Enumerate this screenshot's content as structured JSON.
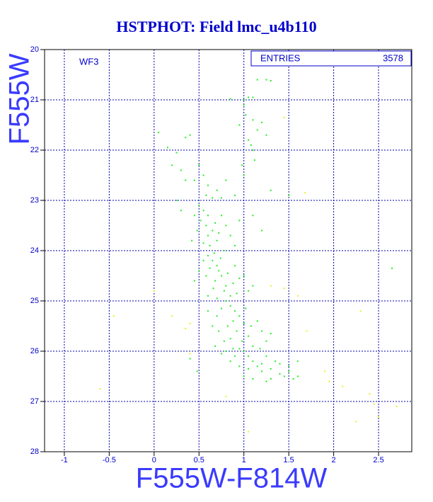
{
  "chart_data": {
    "type": "scatter",
    "title": "HSTPHOT: Field lmc_u4b110",
    "x_label": "F555W-F814W",
    "y_label": "F555W",
    "panel_label": "WF3",
    "stats_label": "ENTRIES",
    "stats_value": "3578",
    "xlim": [
      -1.22,
      2.87
    ],
    "ylim": [
      28,
      20
    ],
    "xticks": [
      -1,
      -0.5,
      0,
      0.5,
      1,
      1.5,
      2,
      2.5
    ],
    "yticks": [
      20,
      21,
      22,
      23,
      24,
      25,
      26,
      27,
      28
    ],
    "grid": true,
    "series": [
      {
        "color": "#22ee22",
        "x": [
          1.0,
          1.05,
          1.1,
          1.25,
          1.15,
          1.3,
          1.0,
          1.02,
          1.1,
          1.15,
          1.05,
          0.95,
          0.85,
          1.2,
          1.25,
          1.1,
          1.08,
          0.98,
          1.12,
          1.0,
          0.05,
          0.15,
          0.25,
          0.35,
          0.4,
          0.2,
          0.3,
          0.35,
          0.5,
          0.55,
          0.6,
          0.45,
          0.7,
          0.8,
          0.9,
          0.58,
          0.65,
          0.75,
          0.5,
          0.55,
          0.6,
          0.52,
          0.58,
          0.65,
          0.6,
          0.7,
          0.62,
          0.75,
          0.8,
          0.45,
          0.48,
          0.68,
          0.72,
          0.55,
          0.85,
          0.95,
          1.1,
          1.2,
          0.42,
          0.9,
          0.78,
          0.67,
          0.6,
          0.65,
          0.7,
          0.72,
          0.75,
          0.68,
          0.8,
          0.78,
          0.85,
          0.62,
          0.9,
          0.95,
          0.58,
          0.66,
          0.88,
          1.0,
          1.05,
          0.55,
          0.74,
          0.82,
          0.6,
          0.92,
          0.7,
          1.1,
          0.5,
          0.45,
          0.8,
          0.85,
          0.9,
          0.75,
          0.95,
          0.88,
          0.82,
          1.0,
          0.92,
          1.05,
          0.98,
          1.1,
          0.7,
          0.72,
          0.78,
          1.15,
          1.2,
          1.25,
          0.65,
          0.85,
          1.02,
          0.95,
          1.08,
          0.6,
          1.3,
          0.68,
          0.88,
          1.18,
          1.0,
          1.05,
          1.1,
          1.15,
          1.2,
          1.3,
          1.4,
          1.45,
          1.5,
          1.35,
          1.25,
          0.9,
          0.95,
          1.0,
          1.1,
          1.2,
          1.55,
          1.6,
          1.3,
          0.85,
          0.8,
          1.4,
          1.25,
          1.05,
          0.75,
          1.5,
          2.65,
          0.4,
          0.48,
          1.6,
          0.3,
          0.25,
          1.3,
          1.5
        ],
        "values": [
          21.0,
          20.95,
          20.95,
          20.6,
          20.6,
          20.62,
          21.1,
          21.3,
          21.4,
          21.6,
          21.8,
          21.5,
          20.98,
          21.45,
          21.7,
          22.0,
          21.9,
          22.3,
          22.2,
          22.5,
          21.65,
          21.95,
          22.05,
          21.75,
          21.7,
          22.3,
          22.4,
          22.6,
          22.3,
          22.5,
          22.7,
          22.6,
          22.8,
          22.6,
          22.9,
          22.9,
          22.95,
          22.95,
          23.1,
          23.2,
          23.3,
          23.4,
          23.5,
          23.6,
          23.7,
          23.8,
          23.9,
          23.3,
          23.5,
          23.3,
          23.6,
          23.45,
          23.65,
          23.85,
          23.7,
          23.4,
          23.3,
          23.6,
          23.8,
          23.9,
          24.0,
          24.05,
          24.1,
          24.2,
          24.3,
          24.4,
          24.5,
          24.6,
          24.7,
          24.8,
          24.9,
          24.35,
          24.3,
          24.55,
          24.5,
          24.75,
          24.65,
          24.5,
          24.8,
          24.2,
          24.15,
          24.45,
          24.9,
          24.85,
          24.95,
          24.7,
          24.4,
          24.6,
          25.0,
          25.1,
          25.2,
          25.15,
          25.3,
          25.4,
          25.5,
          25.45,
          25.6,
          25.7,
          25.8,
          25.9,
          25.3,
          25.6,
          25.8,
          25.4,
          25.6,
          25.8,
          25.5,
          25.75,
          25.15,
          25.95,
          25.5,
          25.2,
          25.65,
          25.9,
          25.95,
          25.95,
          26.0,
          26.1,
          26.2,
          26.3,
          26.4,
          26.35,
          26.45,
          26.5,
          26.4,
          26.2,
          26.1,
          26.1,
          26.3,
          26.5,
          26.55,
          26.25,
          26.55,
          26.5,
          26.55,
          26.2,
          26.0,
          26.25,
          26.6,
          26.35,
          26.05,
          26.3,
          24.35,
          26.15,
          26.4,
          26.2,
          23.2,
          23.0,
          22.8,
          22.9
        ]
      },
      {
        "color": "#eeee22",
        "x": [
          1.45,
          1.68,
          1.3,
          1.45,
          1.6,
          0.4,
          0.35,
          -0.45,
          0.2,
          0.4,
          1.7,
          1.9,
          1.95,
          2.1,
          2.4,
          2.45,
          2.5,
          2.25,
          2.7,
          -0.6,
          0.8,
          1.05,
          2.3,
          0.0
        ],
        "values": [
          21.35,
          22.85,
          24.7,
          24.75,
          24.9,
          25.45,
          25.55,
          25.3,
          25.3,
          26.05,
          25.6,
          26.4,
          26.6,
          26.7,
          26.85,
          27.05,
          27.3,
          27.4,
          27.1,
          26.75,
          26.9,
          27.6,
          25.2,
          24.8
        ]
      }
    ]
  }
}
